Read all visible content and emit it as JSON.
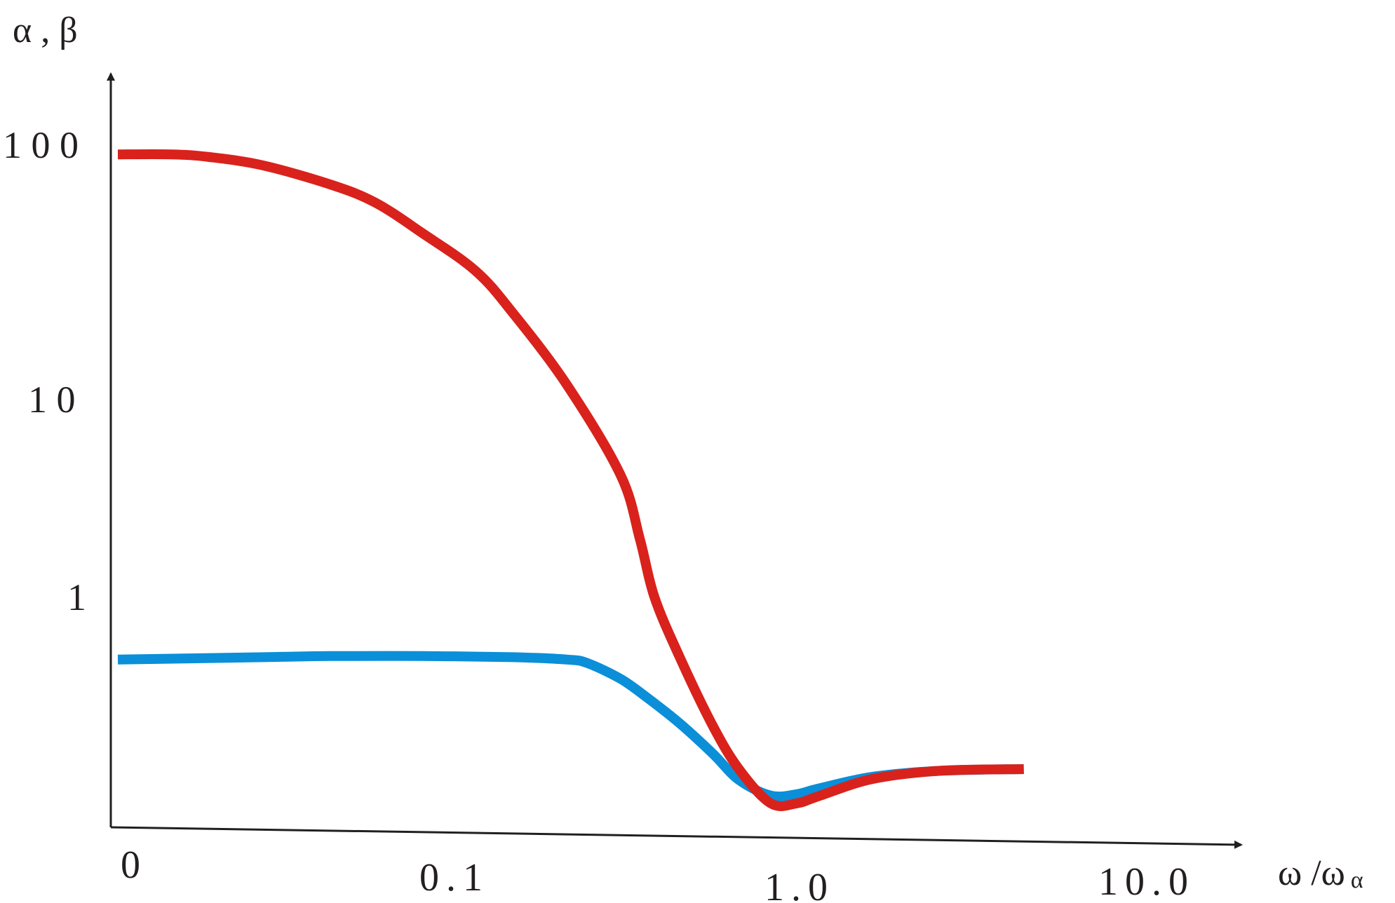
{
  "chart_data": {
    "type": "line",
    "ylabel": "α , β",
    "xlabel": "ω /ω",
    "xlabel_sub": "α",
    "y_ticks": [
      "1 0 0",
      "1 0",
      "1"
    ],
    "x_ticks": [
      "0",
      "0.1",
      "1.0",
      "10.0"
    ],
    "x_scale": "log",
    "y_scale": "log",
    "xlim": [
      0.01,
      20
    ],
    "ylim": [
      0.18,
      250
    ],
    "series": [
      {
        "color": "#0b8fd8",
        "x": [
          0.01,
          0.03,
          0.05,
          0.1,
          0.2,
          0.3,
          0.35,
          0.45,
          0.55,
          0.7,
          0.9,
          1.1,
          1.4,
          1.7,
          2.0,
          3.0,
          5.0,
          9.5
        ],
        "y": [
          0.87,
          0.89,
          0.9,
          0.9,
          0.89,
          0.87,
          0.84,
          0.72,
          0.6,
          0.47,
          0.35,
          0.27,
          0.232,
          0.235,
          0.248,
          0.278,
          0.295,
          0.3
        ]
      },
      {
        "color": "#d9221c",
        "x": [
          0.01,
          0.015,
          0.02,
          0.03,
          0.05,
          0.07,
          0.1,
          0.15,
          0.2,
          0.3,
          0.45,
          0.52,
          0.58,
          0.7,
          0.9,
          1.1,
          1.4,
          1.7,
          2.0,
          3.0,
          5.0,
          9.5
        ],
        "y": [
          118,
          118,
          115,
          106,
          88,
          74,
          55,
          38,
          25,
          12.5,
          5.2,
          2.8,
          1.6,
          0.9,
          0.46,
          0.3,
          0.215,
          0.215,
          0.23,
          0.272,
          0.295,
          0.3
        ]
      }
    ]
  }
}
